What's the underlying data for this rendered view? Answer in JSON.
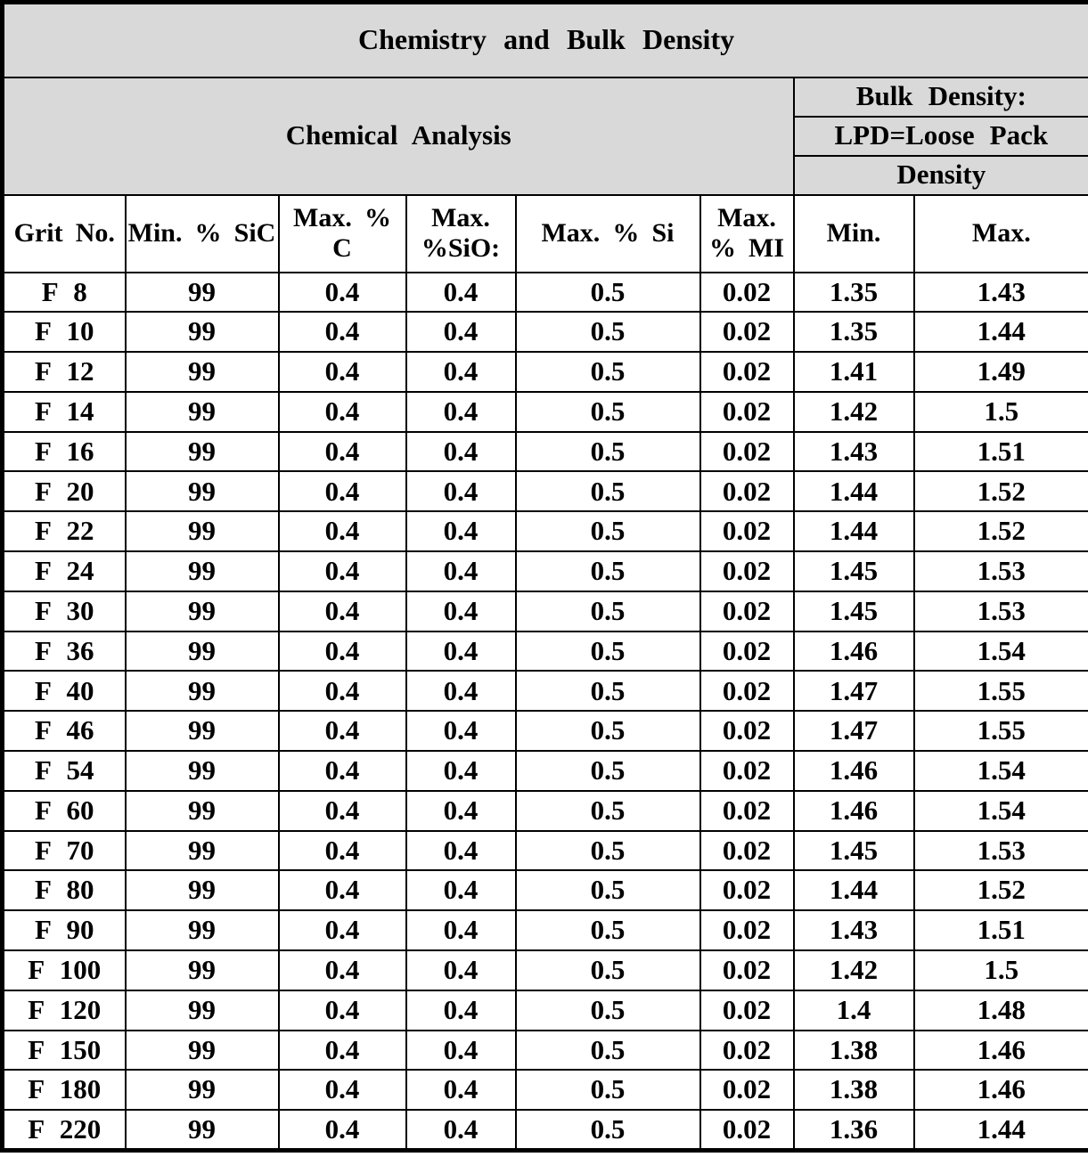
{
  "title": "Chemistry  and  Bulk  Density",
  "sections": {
    "chemical_analysis": "Chemical  Analysis",
    "bulk_density_lines": [
      "Bulk  Density:",
      "LPD=Loose Pack",
      "Density"
    ]
  },
  "columns": [
    "Grit No.",
    "Min. % SiC",
    "Max. %\nC",
    "Max.\n%SiO:",
    "Max. %  Si",
    "Max.\n% MI",
    "Min.",
    "Max."
  ],
  "rows": [
    [
      "F 8",
      "99",
      "0.4",
      "0.4",
      "0.5",
      "0.02",
      "1.35",
      "1.43"
    ],
    [
      "F 10",
      "99",
      "0.4",
      "0.4",
      "0.5",
      "0.02",
      "1.35",
      "1.44"
    ],
    [
      "F 12",
      "99",
      "0.4",
      "0.4",
      "0.5",
      "0.02",
      "1.41",
      "1.49"
    ],
    [
      "F 14",
      "99",
      "0.4",
      "0.4",
      "0.5",
      "0.02",
      "1.42",
      "1.5"
    ],
    [
      "F 16",
      "99",
      "0.4",
      "0.4",
      "0.5",
      "0.02",
      "1.43",
      "1.51"
    ],
    [
      "F 20",
      "99",
      "0.4",
      "0.4",
      "0.5",
      "0.02",
      "1.44",
      "1.52"
    ],
    [
      "F 22",
      "99",
      "0.4",
      "0.4",
      "0.5",
      "0.02",
      "1.44",
      "1.52"
    ],
    [
      "F 24",
      "99",
      "0.4",
      "0.4",
      "0.5",
      "0.02",
      "1.45",
      "1.53"
    ],
    [
      "F 30",
      "99",
      "0.4",
      "0.4",
      "0.5",
      "0.02",
      "1.45",
      "1.53"
    ],
    [
      "F 36",
      "99",
      "0.4",
      "0.4",
      "0.5",
      "0.02",
      "1.46",
      "1.54"
    ],
    [
      "F 40",
      "99",
      "0.4",
      "0.4",
      "0.5",
      "0.02",
      "1.47",
      "1.55"
    ],
    [
      "F 46",
      "99",
      "0.4",
      "0.4",
      "0.5",
      "0.02",
      "1.47",
      "1.55"
    ],
    [
      "F 54",
      "99",
      "0.4",
      "0.4",
      "0.5",
      "0.02",
      "1.46",
      "1.54"
    ],
    [
      "F 60",
      "99",
      "0.4",
      "0.4",
      "0.5",
      "0.02",
      "1.46",
      "1.54"
    ],
    [
      "F 70",
      "99",
      "0.4",
      "0.4",
      "0.5",
      "0.02",
      "1.45",
      "1.53"
    ],
    [
      "F 80",
      "99",
      "0.4",
      "0.4",
      "0.5",
      "0.02",
      "1.44",
      "1.52"
    ],
    [
      "F 90",
      "99",
      "0.4",
      "0.4",
      "0.5",
      "0.02",
      "1.43",
      "1.51"
    ],
    [
      "F 100",
      "99",
      "0.4",
      "0.4",
      "0.5",
      "0.02",
      "1.42",
      "1.5"
    ],
    [
      "F 120",
      "99",
      "0.4",
      "0.4",
      "0.5",
      "0.02",
      "1.4",
      "1.48"
    ],
    [
      "F 150",
      "99",
      "0.4",
      "0.4",
      "0.5",
      "0.02",
      "1.38",
      "1.46"
    ],
    [
      "F 180",
      "99",
      "0.4",
      "0.4",
      "0.5",
      "0.02",
      "1.38",
      "1.46"
    ],
    [
      "F 220",
      "99",
      "0.4",
      "0.4",
      "0.5",
      "0.02",
      "1.36",
      "1.44"
    ]
  ],
  "colors": {
    "header_bg": "#d9d9d9",
    "body_bg": "#ffffff",
    "border": "#000000",
    "text": "#000000"
  }
}
